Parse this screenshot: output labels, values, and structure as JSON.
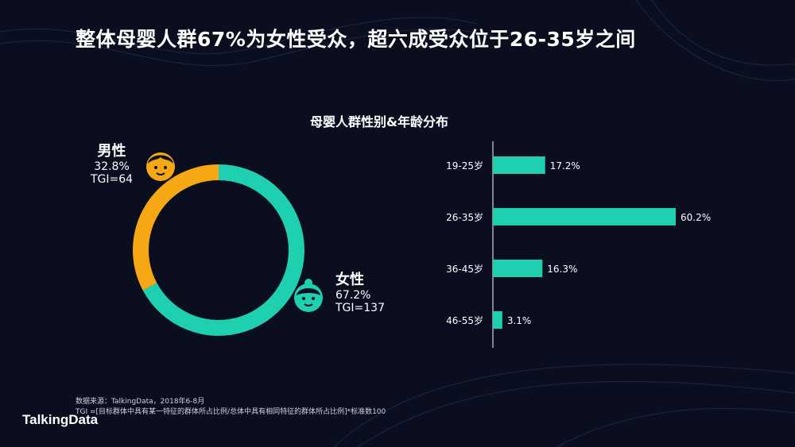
{
  "title": "整体母婴人群67%为女性受众，超六成受众位于26-35岁之间",
  "chart_title": "母婴人群性别&年龄分布",
  "gender": {
    "male": {
      "name": "男性",
      "pct": "32.8%",
      "tgi": "TGI=64"
    },
    "female": {
      "name": "女性",
      "pct": "67.2%",
      "tgi": "TGI=137"
    }
  },
  "footnote": {
    "source": "数据来源：TalkingData，2018年6-8月",
    "tgi_def": "TGI =[目标群体中具有某一特征的群体所占比例/总体中具有相同特征的群体所占比例]*标准数100"
  },
  "logo": "TalkingData",
  "colors": {
    "male": "#f5a814",
    "female": "#1ecfb0",
    "bar": "#1ecfb0",
    "background": "#0a0e1f"
  },
  "icons": {
    "male": "boy-face-icon",
    "female": "girl-face-icon"
  },
  "chart_data": [
    {
      "type": "pie",
      "title": "",
      "categories": [
        "男性",
        "女性"
      ],
      "values": [
        32.8,
        67.2
      ],
      "donut": true
    },
    {
      "type": "bar",
      "orientation": "horizontal",
      "title": "",
      "categories": [
        "19-25岁",
        "26-35岁",
        "36-45岁",
        "46-55岁"
      ],
      "values": [
        17.2,
        60.2,
        16.3,
        3.1
      ],
      "value_labels": [
        "17.2%",
        "60.2%",
        "16.3%",
        "3.1%"
      ],
      "xlim": [
        0,
        60.2
      ]
    }
  ]
}
